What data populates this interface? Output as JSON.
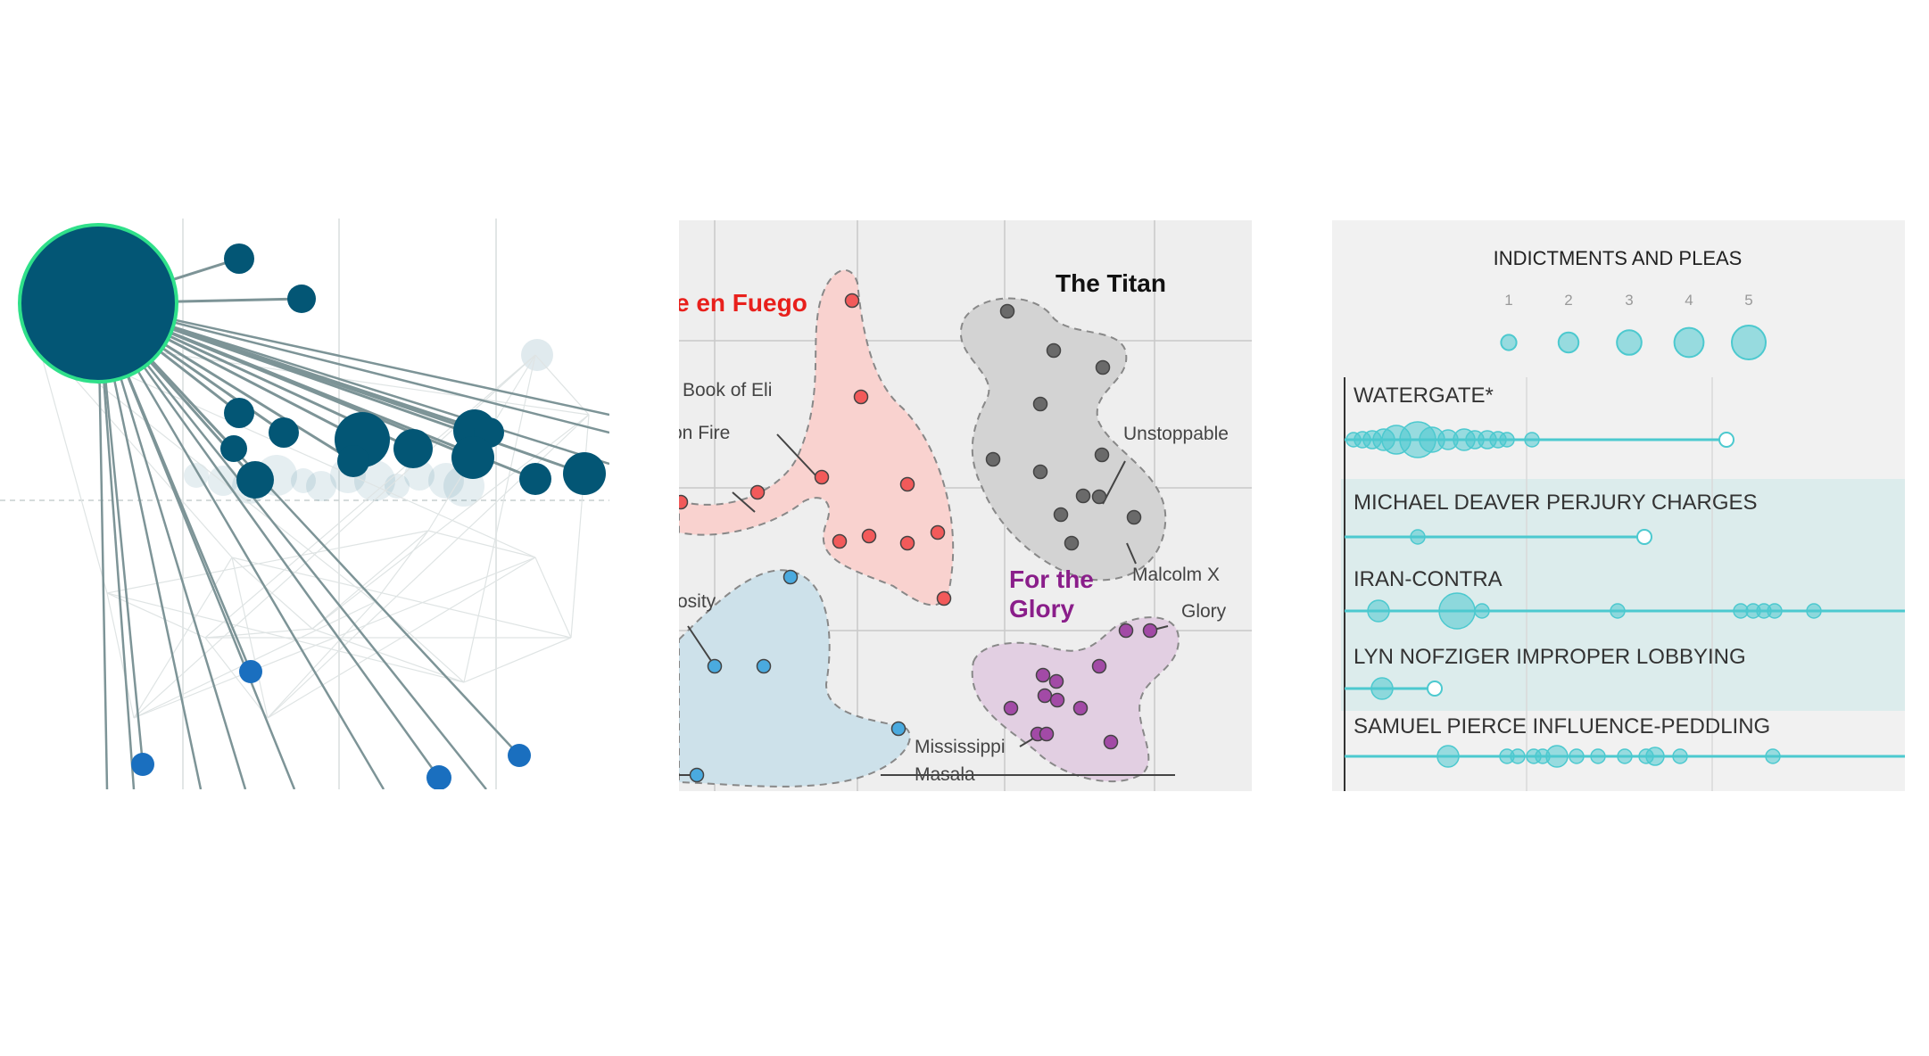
{
  "colors": {
    "network_node": "#035675",
    "network_highlight_ring": "#2fe08a",
    "network_small_node": "#1a6fbf",
    "network_edge": "#7d9497",
    "cluster_red": "#f25a5a",
    "cluster_red_fill": "#f9d2cf",
    "cluster_gray": "#6a6a6a",
    "cluster_gray_fill": "#d3d3d3",
    "cluster_blue": "#4aaadf",
    "cluster_blue_fill": "#cde1ea",
    "cluster_purple": "#a24aa6",
    "cluster_purple_fill": "#e2cfe2",
    "cluster_purple_title": "#8a1e8a",
    "indictment_teal": "#4cc9cf",
    "indictment_band": "#dcecec"
  },
  "network": {
    "hub": {
      "x": 110,
      "y": 95,
      "r": 88
    },
    "big_nodes": [
      {
        "x": 268,
        "y": 45,
        "r": 17
      },
      {
        "x": 338,
        "y": 90,
        "r": 16
      },
      {
        "x": 268,
        "y": 218,
        "r": 17
      },
      {
        "x": 318,
        "y": 240,
        "r": 17
      },
      {
        "x": 262,
        "y": 258,
        "r": 15
      },
      {
        "x": 286,
        "y": 293,
        "r": 21
      },
      {
        "x": 406,
        "y": 248,
        "r": 31
      },
      {
        "x": 396,
        "y": 272,
        "r": 18
      },
      {
        "x": 463,
        "y": 258,
        "r": 22
      },
      {
        "x": 532,
        "y": 238,
        "r": 24
      },
      {
        "x": 548,
        "y": 240,
        "r": 17
      },
      {
        "x": 530,
        "y": 268,
        "r": 24
      },
      {
        "x": 600,
        "y": 292,
        "r": 18
      },
      {
        "x": 655,
        "y": 286,
        "r": 24
      }
    ],
    "small_nodes": [
      {
        "x": 281,
        "y": 508,
        "r": 13
      },
      {
        "x": 160,
        "y": 612,
        "r": 13
      },
      {
        "x": 492,
        "y": 627,
        "r": 14
      },
      {
        "x": 582,
        "y": 602,
        "r": 13
      }
    ]
  },
  "clusters": {
    "groups": [
      {
        "title": "e en Fuego",
        "color": "red"
      },
      {
        "title": "The Titan",
        "color": "gray"
      },
      {
        "title": "For the",
        "color": "purple"
      },
      {
        "title": "Glory",
        "color": "purple"
      }
    ],
    "labels": {
      "book_of_eli": "Book of Eli",
      "on_fire": "on Fire",
      "unstoppable": "Unstoppable",
      "malcolm_x": "Malcolm X",
      "glory": "Glory",
      "osity": "osity",
      "mississippi": "Mississippi",
      "masala": "Masala"
    }
  },
  "indictments": {
    "title": "INDICTMENTS AND PLEAS",
    "legend": [
      {
        "label": "1",
        "value": 1
      },
      {
        "label": "2",
        "value": 2
      },
      {
        "label": "3",
        "value": 3
      },
      {
        "label": "4",
        "value": 4
      },
      {
        "label": "5",
        "value": 5
      }
    ],
    "rows": [
      {
        "label": "WATERGATE*",
        "shaded": false
      },
      {
        "label": "MICHAEL DEAVER PERJURY CHARGES",
        "shaded": true
      },
      {
        "label": "IRAN-CONTRA",
        "shaded": true
      },
      {
        "label": "LYN NOFZIGER IMPROPER LOBBYING",
        "shaded": true
      },
      {
        "label": "SAMUEL PIERCE INFLUENCE-PEDDLING",
        "shaded": false
      }
    ]
  },
  "chart_data": [
    {
      "type": "scatter",
      "title": "",
      "series": [
        {
          "values": []
        }
      ]
    },
    {
      "type": "scatter",
      "title": "",
      "series": [
        {
          "name": "e en Fuego",
          "values": []
        },
        {
          "name": "The Titan",
          "values": []
        },
        {
          "name": "For the Glory",
          "values": []
        }
      ]
    },
    {
      "type": "scatter",
      "title": "INDICTMENTS AND PLEAS",
      "legend_sizes": [
        1,
        2,
        3,
        4,
        5
      ],
      "categories": [
        "WATERGATE*",
        "MICHAEL DEAVER PERJURY CHARGES",
        "IRAN-CONTRA",
        "LYN NOFZIGER IMPROPER LOBBYING",
        "SAMUEL PIERCE INFLUENCE-PEDDLING"
      ]
    }
  ]
}
